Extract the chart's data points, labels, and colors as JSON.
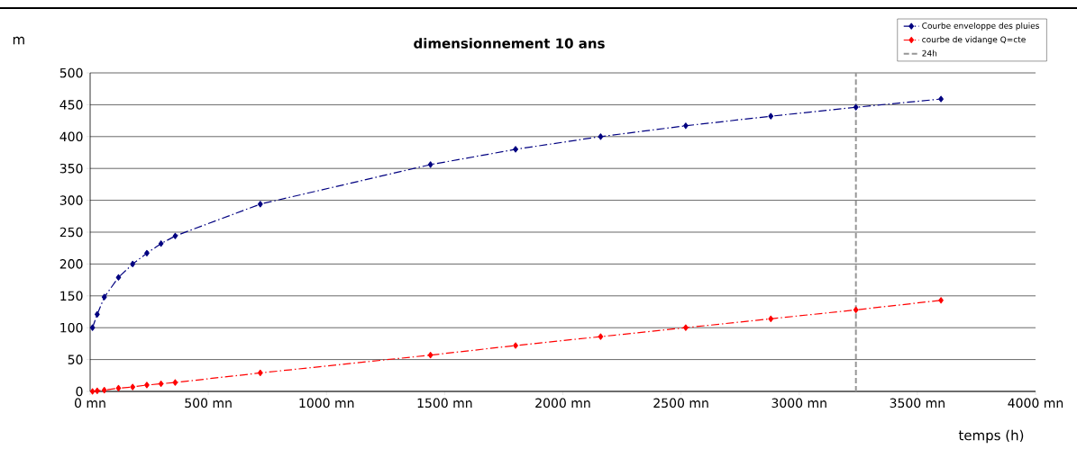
{
  "chart_data": {
    "type": "line",
    "title": "dimensionnement 10 ans",
    "xlabel": "temps (h)",
    "ylabel": "m",
    "x": [
      10,
      30,
      60,
      120,
      180,
      240,
      300,
      360,
      720,
      1440,
      1800,
      2160,
      2520,
      2880,
      3240,
      3600
    ],
    "series": [
      {
        "name": "Courbe enveloppe des pluies",
        "color": "#000080",
        "line_style": "dashed",
        "values": [
          100,
          121,
          148,
          179,
          200,
          217,
          232,
          244,
          294,
          356,
          380,
          400,
          417,
          432,
          446,
          459
        ]
      },
      {
        "name": "courbe de vidange Q=cte",
        "color": "#ff0000",
        "line_style": "dashed",
        "values": [
          0,
          1,
          2,
          5,
          7,
          10,
          12,
          14,
          29,
          57,
          72,
          86,
          100,
          114,
          128,
          143
        ]
      }
    ],
    "ref_lines": [
      {
        "axis": "x",
        "value": 3240,
        "label": "24h",
        "color": "#969696",
        "line_style": "dashed"
      }
    ],
    "xlim": [
      0,
      4000
    ],
    "ylim": [
      0,
      500
    ],
    "xticks": [
      {
        "value": 0,
        "label": "0 mn"
      },
      {
        "value": 500,
        "label": "500 mn"
      },
      {
        "value": 1000,
        "label": "1000 mn"
      },
      {
        "value": 1500,
        "label": "1500 mn"
      },
      {
        "value": 2000,
        "label": "2000 mn"
      },
      {
        "value": 2500,
        "label": "2500 mn"
      },
      {
        "value": 3000,
        "label": "3000 mn"
      },
      {
        "value": 3500,
        "label": "3500 mn"
      },
      {
        "value": 4000,
        "label": "4000 mn"
      }
    ],
    "yticks": [
      0,
      50,
      100,
      150,
      200,
      250,
      300,
      350,
      400,
      450,
      500
    ],
    "grid": "y",
    "legend": "top right",
    "marker": "diamond"
  }
}
